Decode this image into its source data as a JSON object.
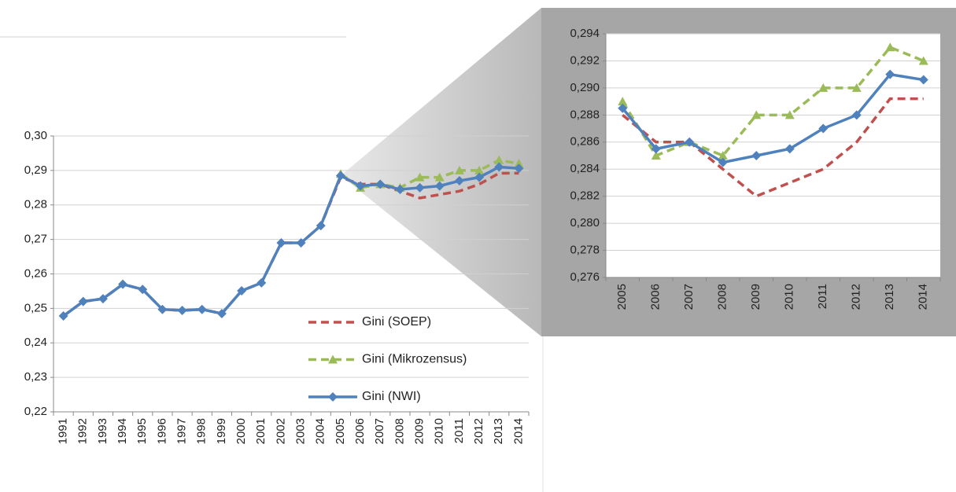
{
  "chart_data": [
    {
      "type": "line",
      "categories": [
        "1991",
        "1992",
        "1993",
        "1994",
        "1995",
        "1996",
        "1997",
        "1998",
        "1999",
        "2000",
        "2001",
        "2002",
        "2003",
        "2004",
        "2005",
        "2006",
        "2007",
        "2008",
        "2009",
        "2010",
        "2011",
        "2012",
        "2013",
        "2014"
      ],
      "series": [
        {
          "name": "Gini (SOEP)",
          "color": "#c0504d",
          "style": "dashed",
          "marker": "none",
          "values": [
            0.2478,
            0.252,
            0.2528,
            0.257,
            0.2555,
            0.2497,
            0.2494,
            0.2497,
            0.2485,
            0.2551,
            0.2574,
            0.269,
            0.269,
            0.274,
            0.288,
            0.286,
            0.286,
            0.284,
            0.282,
            0.283,
            0.284,
            0.286,
            0.2892,
            0.2892
          ]
        },
        {
          "name": "Gini (Mikrozensus)",
          "color": "#9bbb59",
          "style": "dashed",
          "marker": "triangle",
          "values": [
            null,
            null,
            null,
            null,
            null,
            null,
            null,
            null,
            null,
            null,
            null,
            null,
            null,
            null,
            0.289,
            0.285,
            0.286,
            0.285,
            0.288,
            0.288,
            0.29,
            0.29,
            0.293,
            0.292
          ]
        },
        {
          "name": "Gini (NWI)",
          "color": "#4f81bd",
          "style": "solid",
          "marker": "diamond",
          "values": [
            0.2478,
            0.252,
            0.2528,
            0.257,
            0.2555,
            0.2497,
            0.2494,
            0.2497,
            0.2485,
            0.2551,
            0.2574,
            0.269,
            0.269,
            0.274,
            0.2885,
            0.2855,
            0.286,
            0.2845,
            0.285,
            0.2855,
            0.287,
            0.288,
            0.291,
            0.2906
          ]
        }
      ],
      "ylim": [
        0.22,
        0.3
      ],
      "yticks": [
        {
          "value": 0.22,
          "label": "0,22"
        },
        {
          "value": 0.23,
          "label": "0,23"
        },
        {
          "value": 0.24,
          "label": "0,24"
        },
        {
          "value": 0.25,
          "label": "0,25"
        },
        {
          "value": 0.26,
          "label": "0,26"
        },
        {
          "value": 0.27,
          "label": "0,27"
        },
        {
          "value": 0.28,
          "label": "0,28"
        },
        {
          "value": 0.29,
          "label": "0,29"
        },
        {
          "value": 0.3,
          "label": "0,30"
        }
      ],
      "grid": true,
      "legend": "lower right"
    },
    {
      "type": "line",
      "categories": [
        "2005",
        "2006",
        "2007",
        "2008",
        "2009",
        "2010",
        "2011",
        "2012",
        "2013",
        "2014"
      ],
      "series": [
        {
          "name": "Gini (SOEP)",
          "color": "#c0504d",
          "style": "dashed",
          "marker": "none",
          "values": [
            0.288,
            0.286,
            0.286,
            0.284,
            0.282,
            0.283,
            0.284,
            0.286,
            0.2892,
            0.2892
          ]
        },
        {
          "name": "Gini (Mikrozensus)",
          "color": "#9bbb59",
          "style": "dashed",
          "marker": "triangle",
          "values": [
            0.289,
            0.285,
            0.286,
            0.285,
            0.288,
            0.288,
            0.29,
            0.29,
            0.293,
            0.292
          ]
        },
        {
          "name": "Gini (NWI)",
          "color": "#4f81bd",
          "style": "solid",
          "marker": "diamond",
          "values": [
            0.2885,
            0.2855,
            0.286,
            0.2845,
            0.285,
            0.2855,
            0.287,
            0.288,
            0.291,
            0.2906
          ]
        }
      ],
      "ylim": [
        0.276,
        0.294
      ],
      "yticks": [
        {
          "value": 0.276,
          "label": "0,276"
        },
        {
          "value": 0.278,
          "label": "0,278"
        },
        {
          "value": 0.28,
          "label": "0,280"
        },
        {
          "value": 0.282,
          "label": "0,282"
        },
        {
          "value": 0.284,
          "label": "0,284"
        },
        {
          "value": 0.286,
          "label": "0,286"
        },
        {
          "value": 0.288,
          "label": "0,288"
        },
        {
          "value": 0.29,
          "label": "0,290"
        },
        {
          "value": 0.292,
          "label": "0,292"
        },
        {
          "value": 0.294,
          "label": "0,294"
        }
      ],
      "grid": true
    }
  ]
}
